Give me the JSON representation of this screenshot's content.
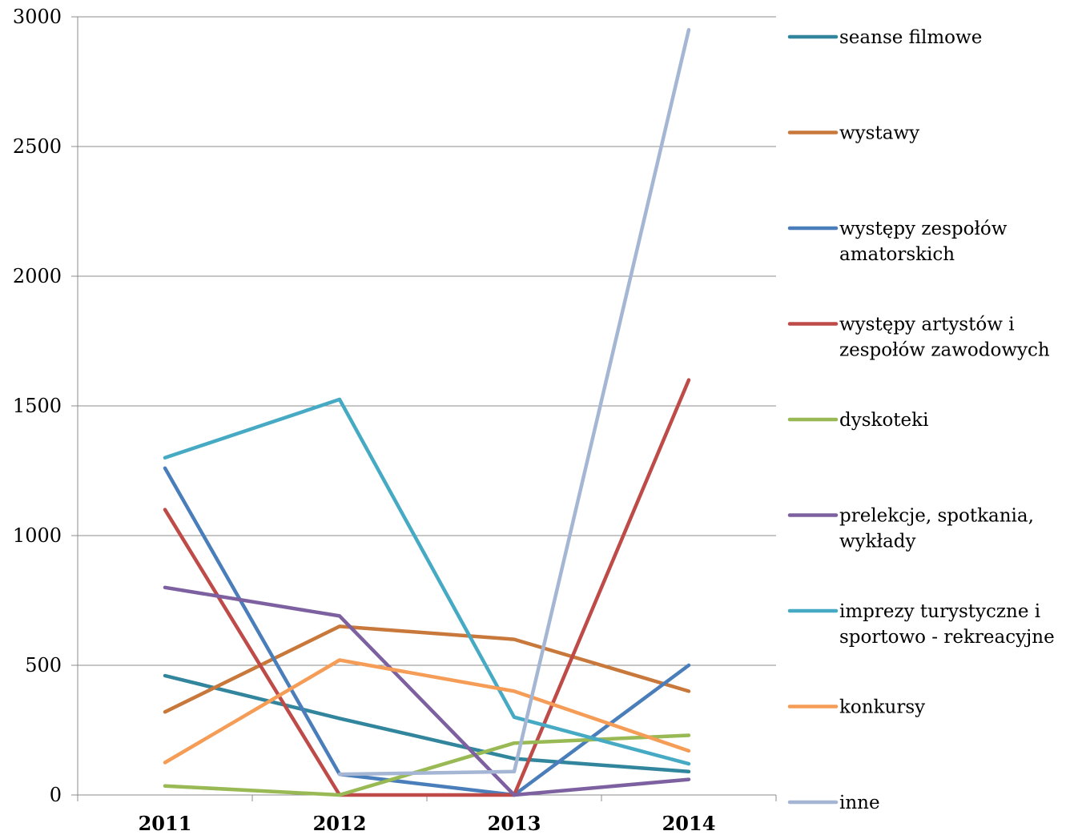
{
  "chart_data": {
    "type": "line",
    "title": "",
    "xlabel": "",
    "ylabel": "",
    "categories": [
      "2011",
      "2012",
      "2013",
      "2014"
    ],
    "ylim": [
      0,
      3000
    ],
    "yticks": [
      0,
      500,
      1000,
      1500,
      2000,
      2500,
      3000
    ],
    "grid": true,
    "legend_position": "right",
    "series": [
      {
        "name": "seanse filmowe",
        "color": "#31859c",
        "values": [
          460,
          295,
          140,
          90
        ]
      },
      {
        "name": "wystawy",
        "color": "#c8783a",
        "values": [
          320,
          650,
          600,
          400
        ]
      },
      {
        "name": "występy zespołów amatorskich",
        "color": "#4a7ebb",
        "values": [
          1260,
          80,
          0,
          500
        ]
      },
      {
        "name": "występy artystów i zespołów zawodowych",
        "color": "#be4b48",
        "values": [
          1100,
          0,
          0,
          1600
        ]
      },
      {
        "name": "dyskoteki",
        "color": "#98b954",
        "values": [
          35,
          0,
          200,
          230
        ]
      },
      {
        "name": "prelekcje, spotkania, wykłady",
        "color": "#7d60a0",
        "values": [
          800,
          690,
          0,
          60
        ]
      },
      {
        "name": "imprezy turystyczne i sportowo - rekreacyjne",
        "color": "#46aac4",
        "values": [
          1300,
          1525,
          300,
          120
        ]
      },
      {
        "name": "konkursy",
        "color": "#f59d56",
        "values": [
          125,
          520,
          400,
          170
        ]
      },
      {
        "name": "inne",
        "color": "#a5b6d4",
        "values": [
          null,
          80,
          90,
          2950
        ]
      }
    ],
    "legend_lines": [
      [
        "seanse filmowe"
      ],
      [
        "wystawy"
      ],
      [
        "występy zespołów",
        "amatorskich"
      ],
      [
        "występy artystów i",
        "zespołów zawodowych"
      ],
      [
        "dyskoteki"
      ],
      [
        "prelekcje, spotkania,",
        "wykłady"
      ],
      [
        "imprezy turystyczne i",
        "sportowo - rekreacyjne"
      ],
      [
        "konkursy"
      ],
      [
        "inne"
      ]
    ]
  }
}
